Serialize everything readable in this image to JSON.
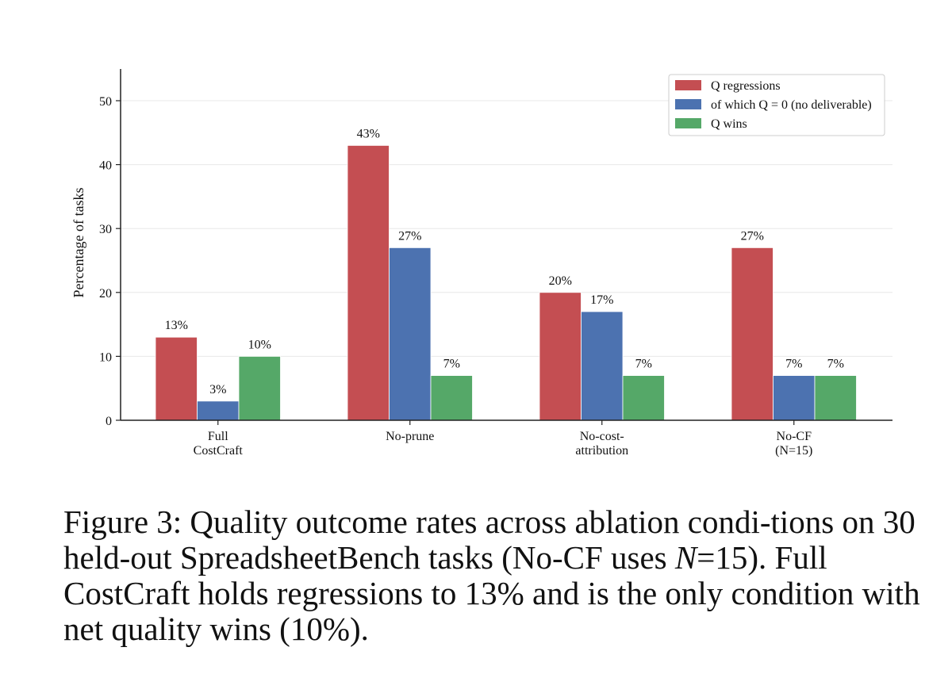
{
  "chart_data": {
    "type": "bar",
    "title": "",
    "xlabel": "",
    "ylabel": "Percentage of tasks",
    "ylim": [
      0,
      53
    ],
    "yticks": [
      0,
      10,
      20,
      30,
      40,
      50
    ],
    "grid": true,
    "legend_position": "top-right",
    "categories": [
      [
        "Full",
        "CostCraft"
      ],
      [
        "No-prune"
      ],
      [
        "No-cost-",
        "attribution"
      ],
      [
        "No-CF",
        "(N=15)"
      ]
    ],
    "series": [
      {
        "name": "Q regressions",
        "color": "#c44e52",
        "values": [
          13,
          43,
          20,
          27
        ],
        "labels": [
          "13%",
          "43%",
          "20%",
          "27%"
        ]
      },
      {
        "name": "of which Q = 0 (no deliverable)",
        "color": "#4c72b0",
        "values": [
          3,
          27,
          17,
          7
        ],
        "labels": [
          "3%",
          "27%",
          "17%",
          "7%"
        ]
      },
      {
        "name": "Q wins",
        "color": "#55a868",
        "values": [
          10,
          7,
          7,
          7
        ],
        "labels": [
          "10%",
          "7%",
          "7%",
          "7%"
        ]
      }
    ]
  },
  "caption": {
    "p1": "Figure 3: Quality outcome rates across ablation condi-tions on 30 held-out SpreadsheetBench tasks (No-CF uses ",
    "n_symbol": "N",
    "p2": "=15). Full CostCraft holds regressions to 13% and is the only condition with net quality wins (10%)."
  }
}
